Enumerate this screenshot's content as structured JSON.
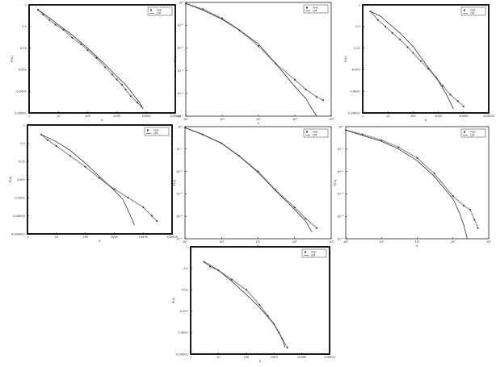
{
  "chart_data": [
    {
      "type": "line",
      "scale": "log-log",
      "frame": "thick",
      "xlabel": "k",
      "ylabel": "P(k)",
      "xticks": [
        "1",
        "10",
        "100",
        "1000",
        "10000",
        "100000"
      ],
      "yticks": [
        "1",
        "0.1",
        "0.01",
        "0.001",
        "0.0001",
        "0.00001"
      ],
      "xlim": [
        1,
        100000
      ],
      "ylim": [
        1e-05,
        1
      ],
      "legend": {
        "position": "top-right",
        "entries": [
          "real",
          "CM"
        ]
      },
      "series": [
        {
          "name": "real",
          "style": "markers",
          "x": [
            2,
            3,
            5,
            8,
            15,
            30,
            60,
            100,
            200,
            400,
            700,
            1000,
            1500,
            2000,
            3000,
            5000,
            7000
          ],
          "y": [
            0.6,
            0.35,
            0.2,
            0.12,
            0.07,
            0.03,
            0.015,
            0.008,
            0.0035,
            0.0013,
            0.0006,
            0.00035,
            0.0002,
            0.00012,
            6e-05,
            3e-05,
            2e-05
          ]
        },
        {
          "name": "CM",
          "style": "line",
          "x": [
            2,
            5,
            10,
            30,
            100,
            300,
            1000,
            2000,
            4000,
            6000,
            8000
          ],
          "y": [
            0.6,
            0.25,
            0.12,
            0.04,
            0.01,
            0.0025,
            0.0005,
            0.0002,
            6e-05,
            3e-05,
            1.5e-05
          ]
        }
      ]
    },
    {
      "type": "line",
      "scale": "log-log",
      "frame": "thin",
      "xlabel": "k",
      "ylabel": "P(k)",
      "xticks": [
        "10⁰",
        "10¹",
        "10²",
        "10³",
        "10⁴"
      ],
      "yticks": [
        "10⁰",
        "10⁻¹",
        "10⁻²",
        "10⁻³",
        "10⁻⁴",
        "10⁻⁵"
      ],
      "xlim": [
        1,
        10000
      ],
      "ylim": [
        1e-05,
        1
      ],
      "legend": {
        "position": "top-right",
        "entries": [
          "real",
          "CM"
        ]
      },
      "series": [
        {
          "name": "real",
          "style": "markers",
          "x": [
            1,
            3,
            10,
            30,
            100,
            300,
            1000,
            2000,
            4000,
            6000
          ],
          "y": [
            0.9,
            0.5,
            0.2,
            0.06,
            0.012,
            0.002,
            0.0004,
            0.00015,
            7e-05,
            5e-05
          ]
        },
        {
          "name": "CM",
          "style": "line",
          "x": [
            1,
            3,
            10,
            30,
            100,
            300,
            1000,
            2000,
            3000,
            4000
          ],
          "y": [
            0.9,
            0.45,
            0.18,
            0.06,
            0.015,
            0.002,
            0.0002,
            6e-05,
            2e-05,
            1e-05
          ]
        }
      ]
    },
    {
      "type": "line",
      "scale": "log-log",
      "frame": "thick",
      "xlabel": "k",
      "ylabel": "P(k)",
      "xticks": [
        "1",
        "10",
        "100",
        "1000",
        "10000",
        "100000"
      ],
      "yticks": [
        "1",
        "0.1",
        "0.01",
        "0.001",
        "0.0001",
        "0.00001"
      ],
      "xlim": [
        1,
        100000
      ],
      "ylim": [
        1e-05,
        1
      ],
      "legend": {
        "position": "top-right",
        "entries": [
          "real",
          "CM"
        ]
      },
      "series": [
        {
          "name": "real",
          "style": "markers",
          "x": [
            2,
            4,
            8,
            15,
            30,
            60,
            100,
            200,
            400,
            800,
            1500,
            3000,
            6000,
            10000
          ],
          "y": [
            0.5,
            0.2,
            0.1,
            0.05,
            0.025,
            0.011,
            0.006,
            0.0025,
            0.0011,
            0.00045,
            0.00018,
            7e-05,
            3.5e-05,
            2e-05
          ]
        },
        {
          "name": "CM",
          "style": "line",
          "x": [
            2,
            5,
            10,
            30,
            100,
            300,
            1000,
            2000,
            3000,
            4000
          ],
          "y": [
            0.5,
            0.3,
            0.15,
            0.05,
            0.012,
            0.002,
            0.0003,
            8e-05,
            3e-05,
            1.5e-05
          ]
        }
      ]
    },
    {
      "type": "line",
      "scale": "log-log",
      "frame": "thick",
      "xlabel": "k",
      "ylabel": "P(k)",
      "xticks": [
        "1",
        "10",
        "100",
        "1000",
        "10000",
        "100000"
      ],
      "yticks": [
        "1",
        "0.1",
        "0.01",
        "0.001",
        "0.0001",
        "0.00001",
        "0.000001"
      ],
      "xlim": [
        1,
        100000
      ],
      "ylim": [
        1e-06,
        1
      ],
      "legend": {
        "position": "top-right",
        "entries": [
          "real",
          "CM"
        ]
      },
      "series": [
        {
          "name": "real",
          "style": "markers",
          "x": [
            3,
            5,
            10,
            30,
            100,
            300,
            1000,
            3000,
            10000,
            20000,
            30000
          ],
          "y": [
            0.3,
            0.15,
            0.07,
            0.02,
            0.005,
            0.0012,
            0.0003,
            0.0001,
            3e-05,
            1e-05,
            5e-06
          ]
        },
        {
          "name": "CM",
          "style": "line",
          "x": [
            3,
            10,
            30,
            100,
            300,
            1000,
            2000,
            3000,
            4000,
            5000
          ],
          "y": [
            0.3,
            0.12,
            0.04,
            0.008,
            0.0015,
            0.00025,
            8e-05,
            2e-05,
            7e-06,
            3e-06
          ]
        }
      ]
    },
    {
      "type": "line",
      "scale": "log-log",
      "frame": "thin",
      "xlabel": "k",
      "ylabel": "P(k)",
      "xticks": [
        "10⁰",
        "10¹",
        "10²",
        "10³",
        "10⁴"
      ],
      "yticks": [
        "10⁰",
        "10⁻¹",
        "10⁻²",
        "10⁻³",
        "10⁻⁴",
        "10⁻⁵"
      ],
      "xlim": [
        1,
        10000
      ],
      "ylim": [
        1e-05,
        1
      ],
      "legend": {
        "position": "top-right",
        "entries": [
          "real",
          "CM"
        ]
      },
      "series": [
        {
          "name": "real",
          "style": "markers",
          "x": [
            1,
            3,
            10,
            30,
            100,
            300,
            1000,
            2000,
            4000
          ],
          "y": [
            0.9,
            0.45,
            0.18,
            0.05,
            0.01,
            0.0015,
            0.00025,
            8e-05,
            3e-05
          ]
        },
        {
          "name": "CM",
          "style": "line",
          "x": [
            1,
            3,
            10,
            30,
            100,
            300,
            1000,
            2000,
            3000
          ],
          "y": [
            0.9,
            0.45,
            0.18,
            0.05,
            0.009,
            0.0014,
            0.0002,
            6e-05,
            2e-05
          ]
        }
      ]
    },
    {
      "type": "line",
      "scale": "log-log",
      "frame": "thin",
      "xlabel": "k",
      "ylabel": "P(k)",
      "xticks": [
        "10⁰",
        "10¹",
        "10²",
        "10³",
        "10⁴"
      ],
      "yticks": [
        "10⁰",
        "10⁻¹",
        "10⁻²",
        "10⁻³",
        "10⁻⁴",
        "10⁻⁵"
      ],
      "xlim": [
        1,
        10000
      ],
      "ylim": [
        1e-05,
        1
      ],
      "legend": {
        "position": "top-right",
        "entries": [
          "real",
          "CM"
        ]
      },
      "series": [
        {
          "name": "real",
          "style": "markers",
          "x": [
            1,
            3,
            10,
            30,
            100,
            300,
            1000,
            2000,
            3000,
            4000,
            5000
          ],
          "y": [
            0.7,
            0.45,
            0.25,
            0.12,
            0.04,
            0.008,
            0.0008,
            0.0003,
            0.0002,
            7e-05,
            3e-05
          ]
        },
        {
          "name": "CM",
          "style": "line",
          "x": [
            1,
            3,
            10,
            30,
            100,
            300,
            1000,
            1500,
            2000,
            2500
          ],
          "y": [
            0.7,
            0.4,
            0.22,
            0.1,
            0.03,
            0.006,
            0.0006,
            0.00015,
            4e-05,
            1e-05
          ]
        }
      ]
    },
    {
      "type": "line",
      "scale": "log-log",
      "frame": "thick",
      "xlabel": "k",
      "ylabel": "P(k)",
      "xticks": [
        "1",
        "10",
        "100",
        "1000",
        "10000",
        "100000"
      ],
      "yticks": [
        "1",
        "0.1",
        "0.01",
        "0.001",
        "0.0001",
        "0.00001"
      ],
      "xlim": [
        1,
        100000
      ],
      "ylim": [
        1e-05,
        1
      ],
      "legend": {
        "position": "top-right",
        "entries": [
          "real",
          "CM"
        ]
      },
      "series": [
        {
          "name": "real",
          "style": "markers",
          "x": [
            3,
            5,
            10,
            30,
            100,
            300,
            600,
            1000,
            1500,
            2000,
            3000
          ],
          "y": [
            0.2,
            0.12,
            0.08,
            0.03,
            0.01,
            0.002,
            0.0006,
            0.00025,
            0.0001,
            5e-05,
            2e-05
          ]
        },
        {
          "name": "CM",
          "style": "line",
          "x": [
            3,
            5,
            10,
            30,
            100,
            300,
            1000,
            1500,
            2000,
            2500
          ],
          "y": [
            0.2,
            0.14,
            0.08,
            0.025,
            0.006,
            0.0015,
            0.00025,
            0.0001,
            5e-05,
            2e-05
          ]
        }
      ]
    }
  ]
}
